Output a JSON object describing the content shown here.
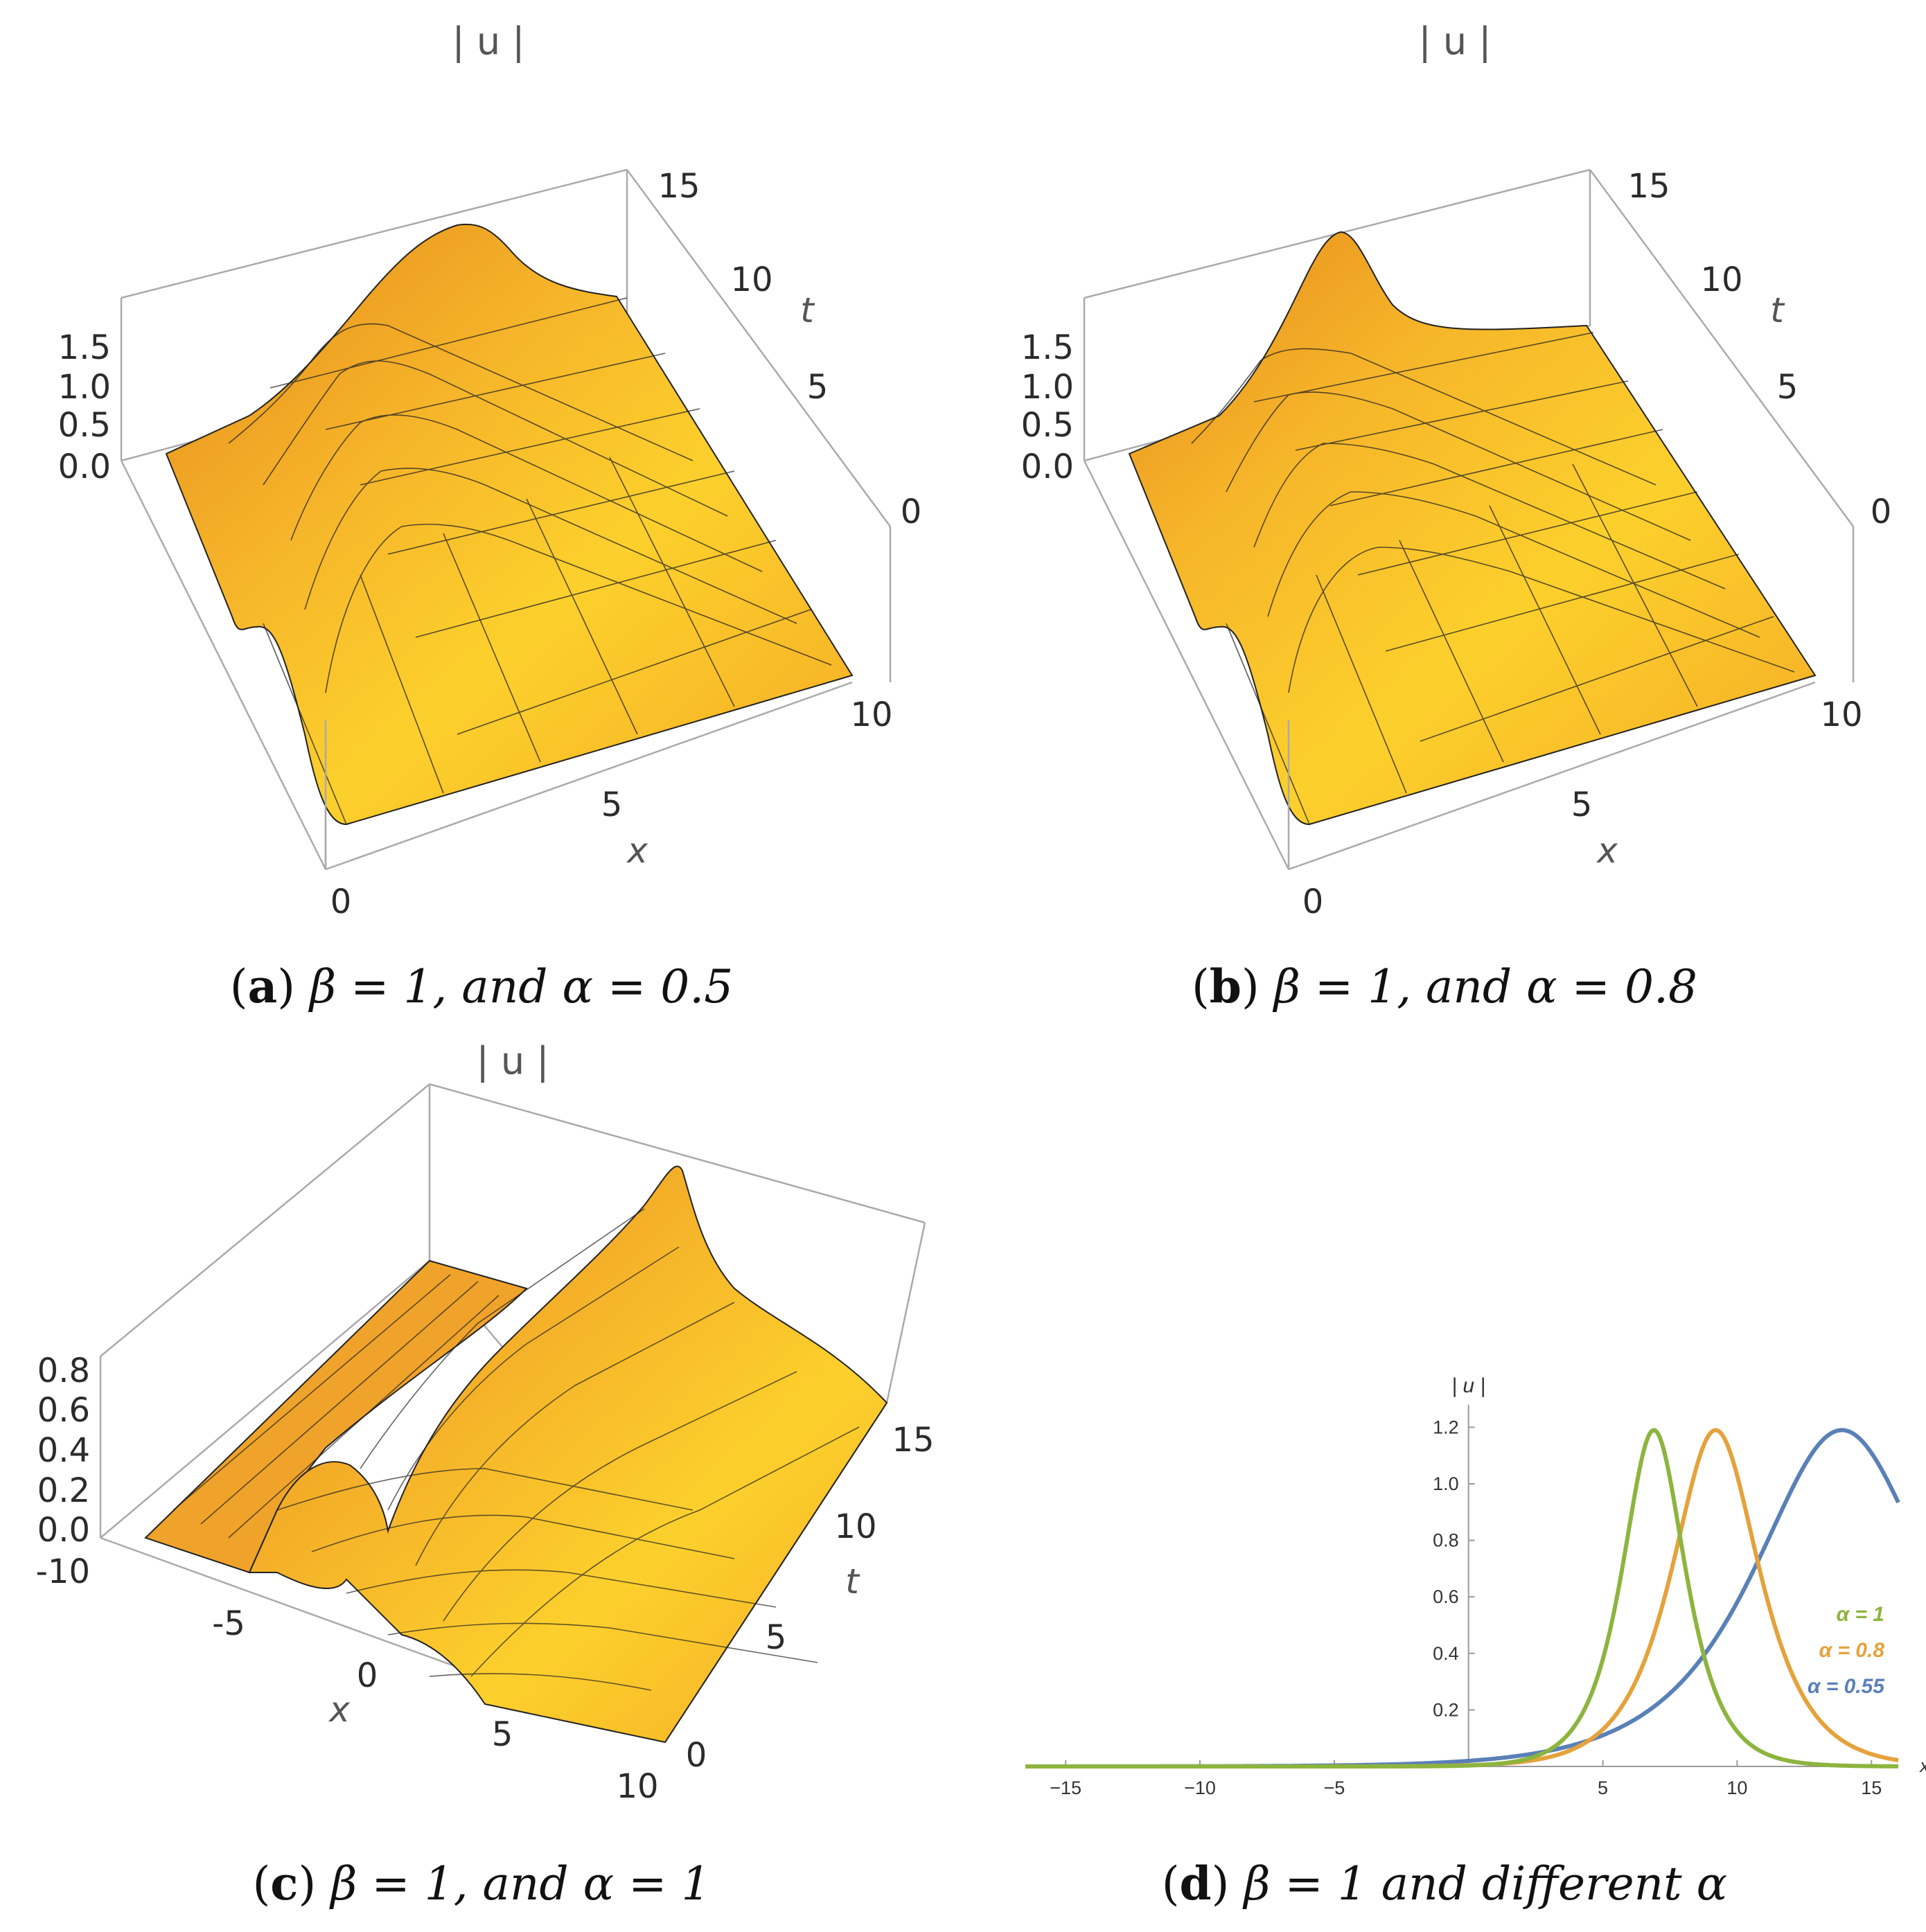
{
  "panels": {
    "a": {
      "zlabel": "| u |",
      "caption_letter": "a",
      "caption_rest": "β = 1, and α = 0.5",
      "x_ticks": [
        "0",
        "5",
        "10"
      ],
      "t_ticks": [
        "0",
        "5",
        "10",
        "15"
      ],
      "z_ticks": [
        "0.0",
        "0.5",
        "1.0",
        "1.5"
      ],
      "xlabel": "x",
      "tlabel": "t"
    },
    "b": {
      "zlabel": "| u |",
      "caption_letter": "b",
      "caption_rest": "β = 1, and α = 0.8",
      "x_ticks": [
        "0",
        "5",
        "10"
      ],
      "t_ticks": [
        "0",
        "5",
        "10",
        "15"
      ],
      "z_ticks": [
        "0.0",
        "0.5",
        "1.0",
        "1.5"
      ],
      "xlabel": "x",
      "tlabel": "t"
    },
    "c": {
      "zlabel": "| u |",
      "caption_letter": "c",
      "caption_rest": "β = 1, and α = 1",
      "x_ticks": [
        "-10",
        "-5",
        "0",
        "5",
        "10"
      ],
      "t_ticks": [
        "0",
        "5",
        "10",
        "15"
      ],
      "z_ticks": [
        "0.0",
        "0.2",
        "0.4",
        "0.6",
        "0.8"
      ],
      "xlabel": "x",
      "tlabel": "t"
    },
    "d": {
      "caption_letter": "d",
      "caption_rest": "β = 1 and different α"
    }
  },
  "chart_data": [
    {
      "type": "surface",
      "panel": "a",
      "title": "|u|",
      "x_range": [
        0,
        10
      ],
      "t_range": [
        0,
        15
      ],
      "z_range": [
        0,
        1.9
      ],
      "params": {
        "beta": 1,
        "alpha": 0.5
      },
      "description_points": {
        "peak_abs_u": 1.9
      }
    },
    {
      "type": "surface",
      "panel": "b",
      "title": "|u|",
      "x_range": [
        0,
        10
      ],
      "t_range": [
        0,
        15
      ],
      "z_range": [
        0,
        1.9
      ],
      "params": {
        "beta": 1,
        "alpha": 0.8
      },
      "description_points": {
        "peak_abs_u": 1.9
      }
    },
    {
      "type": "surface",
      "panel": "c",
      "title": "|u|",
      "x_range": [
        -10,
        10
      ],
      "t_range": [
        0,
        15
      ],
      "z_range": [
        0,
        0.85
      ],
      "params": {
        "beta": 1,
        "alpha": 1
      },
      "description_points": {
        "peak_abs_u": 0.85
      }
    },
    {
      "type": "line",
      "panel": "d",
      "xlabel": "x",
      "ylabel": "| u |",
      "xlim": [
        -16.5,
        16
      ],
      "ylim": [
        0,
        1.25
      ],
      "x_ticks": [
        -15,
        -10,
        -5,
        5,
        10,
        15
      ],
      "y_ticks": [
        0.2,
        0.4,
        0.6,
        0.8,
        1.0,
        1.2
      ],
      "series": [
        {
          "name": "α = 1",
          "color": "#8db43f",
          "peak_x": 6.9,
          "peak_y": 1.19,
          "width": 1.05,
          "x_end": 16
        },
        {
          "name": "α = 0.8",
          "color": "#e5a23c",
          "peak_x": 9.2,
          "peak_y": 1.19,
          "width": 1.45,
          "x_end": 16
        },
        {
          "name": "α = 0.55",
          "color": "#5a80b8",
          "peak_x": 13.9,
          "peak_y": 1.19,
          "width": 2.9,
          "x_end": 16
        }
      ]
    }
  ]
}
